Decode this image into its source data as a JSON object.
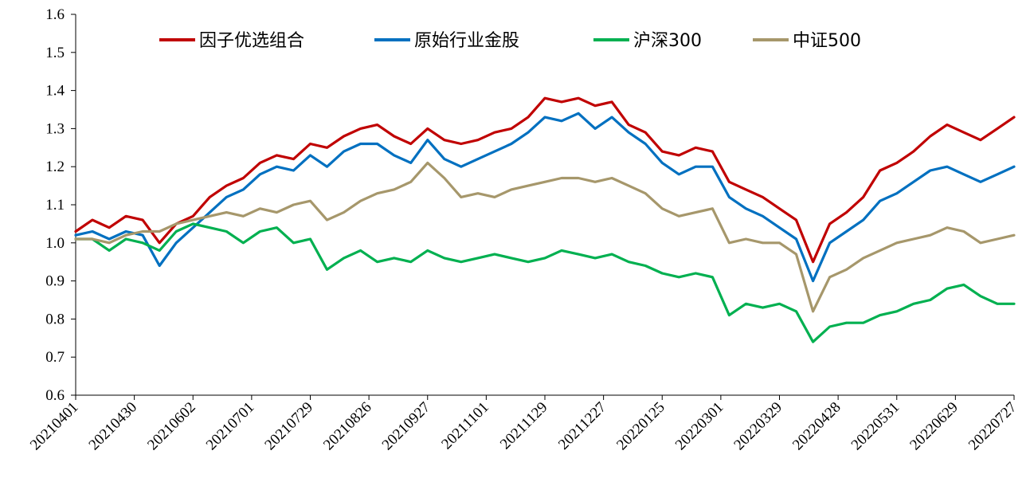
{
  "chart_data": {
    "type": "line",
    "title": "",
    "xlabel": "",
    "ylabel": "",
    "ylim": [
      0.6,
      1.6
    ],
    "yticks": [
      "1.6",
      "1.5",
      "1.4",
      "1.3",
      "1.2",
      "1.1",
      "1.0",
      "0.9",
      "0.8",
      "0.7",
      "0.6"
    ],
    "xticks": [
      "20210401",
      "20210430",
      "20210602",
      "20210701",
      "20210729",
      "20210826",
      "20210927",
      "20211101",
      "20211129",
      "20211227",
      "20220125",
      "20220301",
      "20220329",
      "20220428",
      "20220531",
      "20220629",
      "20220727"
    ],
    "grid": false,
    "legend_position": "top",
    "series": [
      {
        "name": "因子优选组合",
        "color": "#c00000",
        "values": [
          1.03,
          1.06,
          1.04,
          1.07,
          1.06,
          1.0,
          1.05,
          1.07,
          1.12,
          1.15,
          1.17,
          1.21,
          1.23,
          1.22,
          1.26,
          1.25,
          1.28,
          1.3,
          1.31,
          1.28,
          1.26,
          1.3,
          1.27,
          1.26,
          1.27,
          1.29,
          1.3,
          1.33,
          1.38,
          1.37,
          1.38,
          1.36,
          1.37,
          1.31,
          1.29,
          1.24,
          1.23,
          1.25,
          1.24,
          1.16,
          1.14,
          1.12,
          1.09,
          1.06,
          0.95,
          1.05,
          1.08,
          1.12,
          1.19,
          1.21,
          1.24,
          1.28,
          1.31,
          1.29,
          1.27,
          1.3,
          1.33
        ]
      },
      {
        "name": "原始行业金股",
        "color": "#0070c0",
        "values": [
          1.02,
          1.03,
          1.01,
          1.03,
          1.02,
          0.94,
          1.0,
          1.04,
          1.08,
          1.12,
          1.14,
          1.18,
          1.2,
          1.19,
          1.23,
          1.2,
          1.24,
          1.26,
          1.26,
          1.23,
          1.21,
          1.27,
          1.22,
          1.2,
          1.22,
          1.24,
          1.26,
          1.29,
          1.33,
          1.32,
          1.34,
          1.3,
          1.33,
          1.29,
          1.26,
          1.21,
          1.18,
          1.2,
          1.2,
          1.12,
          1.09,
          1.07,
          1.04,
          1.01,
          0.9,
          1.0,
          1.03,
          1.06,
          1.11,
          1.13,
          1.16,
          1.19,
          1.2,
          1.18,
          1.16,
          1.18,
          1.2
        ]
      },
      {
        "name": "沪深300",
        "color": "#00b050",
        "values": [
          1.01,
          1.01,
          0.98,
          1.01,
          1.0,
          0.98,
          1.03,
          1.05,
          1.04,
          1.03,
          1.0,
          1.03,
          1.04,
          1.0,
          1.01,
          0.93,
          0.96,
          0.98,
          0.95,
          0.96,
          0.95,
          0.98,
          0.96,
          0.95,
          0.96,
          0.97,
          0.96,
          0.95,
          0.96,
          0.98,
          0.97,
          0.96,
          0.97,
          0.95,
          0.94,
          0.92,
          0.91,
          0.92,
          0.91,
          0.81,
          0.84,
          0.83,
          0.84,
          0.82,
          0.74,
          0.78,
          0.79,
          0.79,
          0.81,
          0.82,
          0.84,
          0.85,
          0.88,
          0.89,
          0.86,
          0.84,
          0.84
        ]
      },
      {
        "name": "中证500",
        "color": "#a6976b",
        "values": [
          1.01,
          1.01,
          1.0,
          1.02,
          1.03,
          1.03,
          1.05,
          1.06,
          1.07,
          1.08,
          1.07,
          1.09,
          1.08,
          1.1,
          1.11,
          1.06,
          1.08,
          1.11,
          1.13,
          1.14,
          1.16,
          1.21,
          1.17,
          1.12,
          1.13,
          1.12,
          1.14,
          1.15,
          1.16,
          1.17,
          1.17,
          1.16,
          1.17,
          1.15,
          1.13,
          1.09,
          1.07,
          1.08,
          1.09,
          1.0,
          1.01,
          1.0,
          1.0,
          0.97,
          0.82,
          0.91,
          0.93,
          0.96,
          0.98,
          1.0,
          1.01,
          1.02,
          1.04,
          1.03,
          1.0,
          1.01,
          1.02
        ]
      }
    ]
  }
}
